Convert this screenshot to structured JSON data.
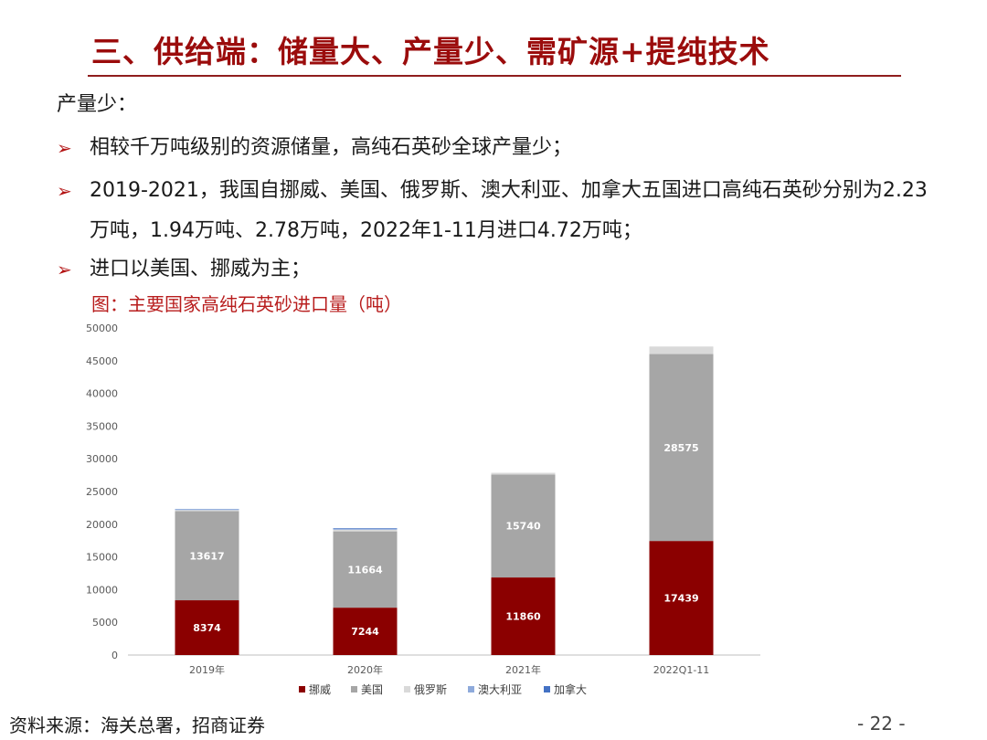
{
  "slide": {
    "title": "三、供给端：储量大、产量少、需矿源+提纯技术",
    "subtitle": "产量少：",
    "bullets": [
      "相较千万吨级别的资源储量，高纯石英砂全球产量少；",
      "2019-2021，我国自挪威、美国、俄罗斯、澳大利亚、加拿大五国进口高纯石英砂分别为2.23万吨，1.94万吨、2.78万吨，2022年1-11月进口4.72万吨；",
      "进口以美国、挪威为主；"
    ],
    "bullet_icon": "arrow-right-icon",
    "figure_caption": "图：主要国家高纯石英砂进口量（吨）",
    "source": "资料来源：海关总署，招商证券",
    "page_number": "- 22 -"
  },
  "colors": {
    "title": "#9b0c0c",
    "caption": "#b81d1d",
    "norway": "#8b0000",
    "usa": "#a6a6a6",
    "russia": "#d9d9d9",
    "australia": "#8eaadb",
    "canada": "#4472c4"
  },
  "chart_data": {
    "type": "bar",
    "stacked": true,
    "categories": [
      "2019年",
      "2020年",
      "2021年",
      "2022Q1-11"
    ],
    "series": [
      {
        "name": "挪威",
        "values": [
          8374,
          7244,
          11860,
          17439
        ],
        "labels": [
          "8374",
          "7244",
          "11860",
          "17439"
        ]
      },
      {
        "name": "美国",
        "values": [
          13617,
          11664,
          15740,
          28575
        ],
        "labels": [
          "13617",
          "11664",
          "15740",
          "28575"
        ]
      },
      {
        "name": "俄罗斯",
        "values": [
          180,
          250,
          260,
          1150
        ]
      },
      {
        "name": "澳大利亚",
        "values": [
          100,
          180,
          0,
          0
        ]
      },
      {
        "name": "加拿大",
        "values": [
          20,
          60,
          0,
          0
        ]
      }
    ],
    "ylim": [
      0,
      50000
    ],
    "yticks": [
      "0",
      "5000",
      "10000",
      "15000",
      "20000",
      "25000",
      "30000",
      "35000",
      "40000",
      "45000",
      "50000"
    ],
    "grid": false,
    "legend": "bottom"
  }
}
